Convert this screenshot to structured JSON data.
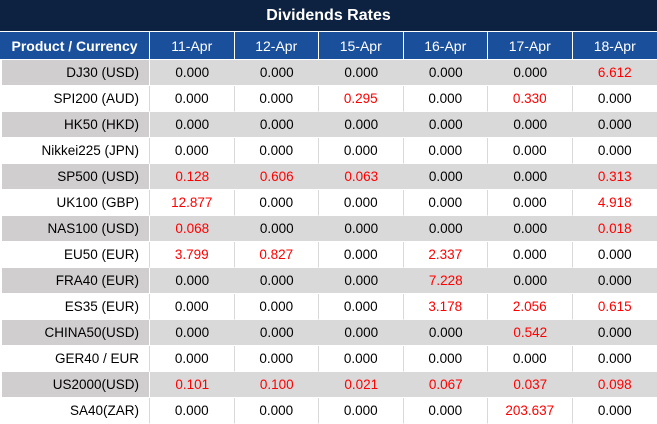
{
  "title": "Dividends Rates",
  "colors": {
    "title_bar": "#0d2240",
    "header_row": "#1a4f9c",
    "gray_row": "#d9d9d9",
    "gray_label_cell": "#d0cece",
    "white_row": "#ffffff",
    "value_text": "#000000",
    "highlight_value_text": "#ff0000"
  },
  "table": {
    "product_header": "Product / Currency",
    "date_headers": [
      "11-Apr",
      "12-Apr",
      "15-Apr",
      "16-Apr",
      "17-Apr",
      "18-Apr"
    ],
    "rows": [
      {
        "product": "DJ30 (USD)",
        "values": [
          "0.000",
          "0.000",
          "0.000",
          "0.000",
          "0.000",
          "6.612"
        ],
        "red": [
          5
        ]
      },
      {
        "product": "SPI200 (AUD)",
        "values": [
          "0.000",
          "0.000",
          "0.295",
          "0.000",
          "0.330",
          "0.000"
        ],
        "red": [
          2,
          4
        ]
      },
      {
        "product": "HK50 (HKD)",
        "values": [
          "0.000",
          "0.000",
          "0.000",
          "0.000",
          "0.000",
          "0.000"
        ],
        "red": []
      },
      {
        "product": "Nikkei225 (JPN)",
        "values": [
          "0.000",
          "0.000",
          "0.000",
          "0.000",
          "0.000",
          "0.000"
        ],
        "red": []
      },
      {
        "product": "SP500 (USD)",
        "values": [
          "0.128",
          "0.606",
          "0.063",
          "0.000",
          "0.000",
          "0.313"
        ],
        "red": [
          0,
          1,
          2,
          5
        ]
      },
      {
        "product": "UK100 (GBP)",
        "values": [
          "12.877",
          "0.000",
          "0.000",
          "0.000",
          "0.000",
          "4.918"
        ],
        "red": [
          0,
          5
        ]
      },
      {
        "product": "NAS100 (USD)",
        "values": [
          "0.068",
          "0.000",
          "0.000",
          "0.000",
          "0.000",
          "0.018"
        ],
        "red": [
          0,
          5
        ]
      },
      {
        "product": "EU50 (EUR)",
        "values": [
          "3.799",
          "0.827",
          "0.000",
          "2.337",
          "0.000",
          "0.000"
        ],
        "red": [
          0,
          1,
          3
        ]
      },
      {
        "product": "FRA40 (EUR)",
        "values": [
          "0.000",
          "0.000",
          "0.000",
          "7.228",
          "0.000",
          "0.000"
        ],
        "red": [
          3
        ]
      },
      {
        "product": "ES35 (EUR)",
        "values": [
          "0.000",
          "0.000",
          "0.000",
          "3.178",
          "2.056",
          "0.615"
        ],
        "red": [
          3,
          4,
          5
        ]
      },
      {
        "product": "CHINA50(USD)",
        "values": [
          "0.000",
          "0.000",
          "0.000",
          "0.000",
          "0.542",
          "0.000"
        ],
        "red": [
          4
        ]
      },
      {
        "product": "GER40 / EUR",
        "values": [
          "0.000",
          "0.000",
          "0.000",
          "0.000",
          "0.000",
          "0.000"
        ],
        "red": []
      },
      {
        "product": "US2000(USD)",
        "values": [
          "0.101",
          "0.100",
          "0.021",
          "0.067",
          "0.037",
          "0.098"
        ],
        "red": [
          0,
          1,
          2,
          3,
          4,
          5
        ]
      },
      {
        "product": "SA40(ZAR)",
        "values": [
          "0.000",
          "0.000",
          "0.000",
          "0.000",
          "203.637",
          "0.000"
        ],
        "red": [
          4
        ]
      }
    ]
  }
}
